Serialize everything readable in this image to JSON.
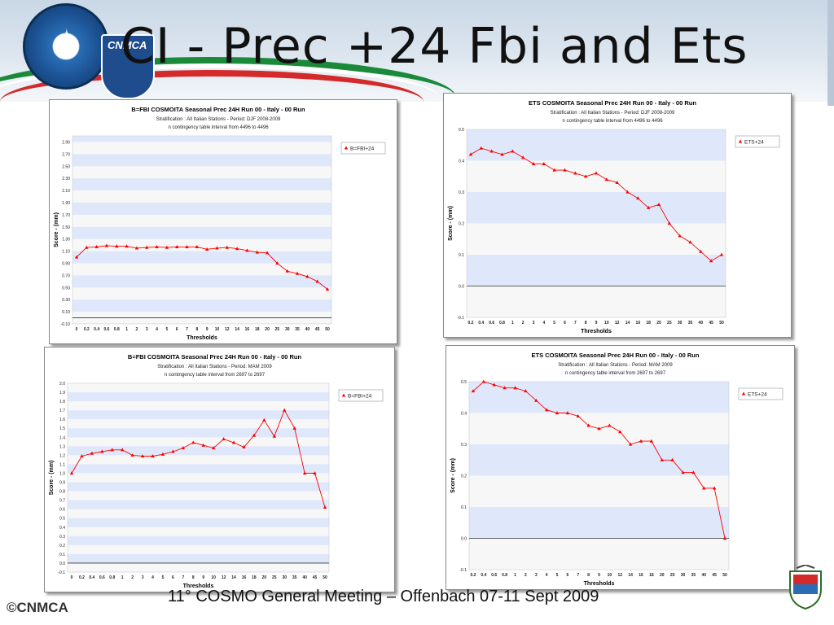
{
  "slide": {
    "title": "CI - Prec +24 Fbi and Ets",
    "footer": "11° COSMO General Meeting – Offenbach 07-11 Sept 2009",
    "copyright": "©CNMCA",
    "logo_text": "CNMCA",
    "colors": {
      "band": "#dfe8fb",
      "series": "#ff0000",
      "grid": "#f7f7f7"
    }
  },
  "chart_data": [
    {
      "type": "line",
      "title": "B=FBI  COSMOITA Seasonal Prec 24H Run 00 - Italy - 00 Run",
      "subtitle": "Stratification : All Italian Stations - Period: DJF 2008-2009",
      "subtitle2": "n contingency table interval from 4496 to 4496",
      "xlabel": "Thresholds",
      "ylabel": "Score - (mm)",
      "legend": "B=FBI+24",
      "legend_position": "top-right",
      "categories": [
        "0",
        "0.2",
        "0.4",
        "0.6",
        "0.8",
        "1",
        "2",
        "3",
        "4",
        "5",
        "6",
        "7",
        "8",
        "9",
        "10",
        "12",
        "14",
        "16",
        "18",
        "20",
        "25",
        "30",
        "35",
        "40",
        "45",
        "50"
      ],
      "yticks": [
        "-0.10",
        "0.10",
        "0.30",
        "0.50",
        "0.70",
        "0.90",
        "1.10",
        "1.30",
        "1.50",
        "1.70",
        "1.90",
        "2.10",
        "2.30",
        "2.50",
        "2.70",
        "2.90"
      ],
      "ylim": [
        -0.1,
        3.0
      ],
      "values": [
        1.0,
        1.16,
        1.17,
        1.19,
        1.18,
        1.18,
        1.15,
        1.16,
        1.17,
        1.16,
        1.17,
        1.17,
        1.17,
        1.13,
        1.15,
        1.16,
        1.14,
        1.11,
        1.08,
        1.07,
        0.9,
        0.77,
        0.73,
        0.68,
        0.6,
        0.47
      ]
    },
    {
      "type": "line",
      "title": "ETS  COSMOITA Seasonal Prec 24H Run 00 - Italy - 00 Run",
      "subtitle": "Stratification : All Italian Stations - Period: DJF 2008-2009",
      "subtitle2": "n contingency table interval from 4496 to 4496",
      "xlabel": "Thresholds",
      "ylabel": "Score - (mm)",
      "legend": "ETS+24",
      "legend_position": "top-right",
      "categories": [
        "0.2",
        "0.4",
        "0.6",
        "0.8",
        "1",
        "2",
        "3",
        "4",
        "5",
        "6",
        "7",
        "8",
        "9",
        "10",
        "12",
        "14",
        "16",
        "18",
        "20",
        "25",
        "30",
        "35",
        "40",
        "45",
        "50"
      ],
      "yticks": [
        "-0.1",
        "0.0",
        "0.1",
        "0.2",
        "0.3",
        "0.4",
        "0.5"
      ],
      "ylim": [
        -0.1,
        0.5
      ],
      "values": [
        0.42,
        0.44,
        0.43,
        0.42,
        0.43,
        0.41,
        0.39,
        0.39,
        0.37,
        0.37,
        0.36,
        0.35,
        0.36,
        0.34,
        0.33,
        0.3,
        0.28,
        0.25,
        0.26,
        0.2,
        0.16,
        0.14,
        0.11,
        0.08,
        0.1
      ]
    },
    {
      "type": "line",
      "title": "B=FBI  COSMOITA Seasonal Prec 24H Run 00 - Italy - 00 Run",
      "subtitle": "Stratification : All Italian Stations - Period: MAM 2009",
      "subtitle2": "n contingency table interval from 2697 to 2697",
      "xlabel": "Thresholds",
      "ylabel": "Score - (mm)",
      "legend": "B=FBI+24",
      "legend_position": "top-right",
      "categories": [
        "0",
        "0.2",
        "0.4",
        "0.6",
        "0.8",
        "1",
        "2",
        "3",
        "4",
        "5",
        "6",
        "7",
        "8",
        "9",
        "10",
        "12",
        "14",
        "16",
        "18",
        "20",
        "25",
        "30",
        "35",
        "40",
        "45",
        "50"
      ],
      "yticks": [
        "-0.1",
        "0.0",
        "0.1",
        "0.2",
        "0.3",
        "0.4",
        "0.5",
        "0.6",
        "0.7",
        "0.8",
        "0.9",
        "1.0",
        "1.1",
        "1.2",
        "1.3",
        "1.4",
        "1.5",
        "1.6",
        "1.7",
        "1.8",
        "1.9",
        "2.0"
      ],
      "ylim": [
        -0.1,
        2.0
      ],
      "values": [
        1.0,
        1.19,
        1.22,
        1.24,
        1.26,
        1.26,
        1.2,
        1.19,
        1.19,
        1.21,
        1.24,
        1.28,
        1.34,
        1.31,
        1.28,
        1.38,
        1.34,
        1.29,
        1.42,
        1.59,
        1.41,
        1.7,
        1.5,
        1.0,
        1.0,
        0.62
      ]
    },
    {
      "type": "line",
      "title": "ETS  COSMOITA Seasonal Prec 24H Run 00 - Italy - 00 Run",
      "subtitle": "Stratification : All Italian Stations - Period: MAM 2009",
      "subtitle2": "n contingency table interval from 2697 to 2697",
      "xlabel": "Thresholds",
      "ylabel": "Score - (mm)",
      "legend": "ETS+24",
      "legend_position": "top-right",
      "categories": [
        "0.2",
        "0.4",
        "0.6",
        "0.8",
        "1",
        "2",
        "3",
        "4",
        "5",
        "6",
        "7",
        "8",
        "9",
        "10",
        "12",
        "14",
        "16",
        "18",
        "20",
        "25",
        "30",
        "35",
        "40",
        "45",
        "50"
      ],
      "yticks": [
        "-0.1",
        "0.0",
        "0.1",
        "0.2",
        "0.3",
        "0.4",
        "0.5"
      ],
      "ylim": [
        -0.1,
        0.5
      ],
      "values": [
        0.47,
        0.5,
        0.49,
        0.48,
        0.48,
        0.47,
        0.44,
        0.41,
        0.4,
        0.4,
        0.39,
        0.36,
        0.35,
        0.36,
        0.34,
        0.3,
        0.31,
        0.31,
        0.25,
        0.25,
        0.21,
        0.21,
        0.16,
        0.16,
        0.0
      ]
    }
  ]
}
